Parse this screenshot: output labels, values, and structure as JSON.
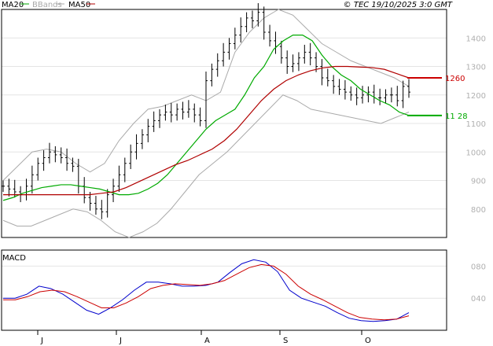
{
  "header": {
    "legend": [
      {
        "label": "MA20",
        "color": "#00aa00"
      },
      {
        "label": "BBands",
        "color": "#aaaaaa"
      },
      {
        "label": "MA50",
        "color": "#b00000"
      }
    ],
    "copyright": "© TEC 19/10/2025 3:0 GMT"
  },
  "panels": {
    "macd_label": "MACD"
  },
  "chart_data": [
    {
      "type": "line",
      "title": "",
      "x_labels": [
        "J",
        "J",
        "A",
        "S",
        "O"
      ],
      "ylim": [
        700,
        1500
      ],
      "grid": true,
      "y_ticks": [
        800,
        900,
        1000,
        1100,
        1200,
        1300,
        1400
      ],
      "y_tick_labels": [
        "800",
        "900",
        "1000",
        "1100",
        "1200",
        "1300",
        "1400"
      ],
      "markers": [
        {
          "name": "MA50",
          "value": 1260,
          "label": "1260",
          "color": "#cc0000"
        },
        {
          "name": "MA20",
          "value": 1128,
          "label": "11 28",
          "color": "#00aa00"
        }
      ],
      "price_close": [
        880,
        870,
        860,
        850,
        880,
        920,
        960,
        980,
        1000,
        990,
        980,
        960,
        950,
        880,
        840,
        820,
        800,
        790,
        850,
        880,
        920,
        960,
        1000,
        1030,
        1060,
        1090,
        1110,
        1130,
        1140,
        1130,
        1150,
        1140,
        1150,
        1130,
        1110,
        1250,
        1290,
        1320,
        1350,
        1380,
        1410,
        1440,
        1470,
        1460,
        1490,
        1420,
        1390,
        1370,
        1330,
        1300,
        1310,
        1330,
        1350,
        1330,
        1300,
        1260,
        1250,
        1230,
        1220,
        1210,
        1200,
        1190,
        1200,
        1210,
        1190,
        1190,
        1200,
        1200,
        1180,
        1230,
        1210
      ],
      "series": [
        {
          "name": "MA20",
          "color": "#00aa00",
          "values": [
            830,
            840,
            855,
            865,
            875,
            880,
            885,
            885,
            880,
            875,
            870,
            860,
            850,
            850,
            855,
            870,
            890,
            920,
            960,
            1000,
            1040,
            1080,
            1110,
            1130,
            1150,
            1200,
            1260,
            1300,
            1360,
            1390,
            1410,
            1410,
            1390,
            1340,
            1300,
            1270,
            1250,
            1220,
            1200,
            1180,
            1165,
            1140,
            1128
          ]
        },
        {
          "name": "MA50",
          "color": "#b00000",
          "values": [
            850,
            850,
            850,
            850,
            850,
            850,
            850,
            850,
            855,
            860,
            875,
            895,
            915,
            935,
            955,
            970,
            990,
            1010,
            1040,
            1080,
            1130,
            1180,
            1220,
            1250,
            1270,
            1285,
            1295,
            1300,
            1300,
            1298,
            1296,
            1290,
            1275,
            1260
          ]
        },
        {
          "name": "BBands upper",
          "color": "#aaaaaa",
          "values": [
            900,
            950,
            1000,
            1010,
            1000,
            960,
            930,
            960,
            1040,
            1100,
            1150,
            1160,
            1180,
            1200,
            1180,
            1210,
            1350,
            1420,
            1470,
            1500,
            1480,
            1430,
            1380,
            1350,
            1320,
            1300,
            1280,
            1260,
            1230
          ]
        },
        {
          "name": "BBands lower",
          "color": "#aaaaaa",
          "values": [
            760,
            740,
            740,
            760,
            780,
            800,
            790,
            760,
            720,
            700,
            720,
            750,
            800,
            860,
            920,
            960,
            1000,
            1050,
            1100,
            1150,
            1200,
            1180,
            1150,
            1140,
            1130,
            1120,
            1110,
            1100,
            1120,
            1140
          ]
        }
      ]
    },
    {
      "type": "line",
      "title": "MACD",
      "ylim": [
        0,
        100
      ],
      "grid": true,
      "y_ticks": [
        40,
        80
      ],
      "y_tick_labels": [
        "040",
        "080"
      ],
      "series": [
        {
          "name": "MACD",
          "color": "#0000cc",
          "values": [
            40,
            40,
            45,
            55,
            52,
            45,
            35,
            25,
            20,
            28,
            38,
            50,
            60,
            60,
            58,
            55,
            55,
            56,
            60,
            72,
            83,
            88,
            85,
            73,
            50,
            40,
            35,
            30,
            22,
            15,
            12,
            11,
            12,
            14,
            22
          ]
        },
        {
          "name": "Signal",
          "color": "#cc0000",
          "values": [
            38,
            38,
            42,
            48,
            50,
            48,
            42,
            35,
            28,
            28,
            34,
            42,
            52,
            56,
            58,
            57,
            56,
            58,
            62,
            70,
            78,
            82,
            80,
            70,
            55,
            45,
            38,
            30,
            22,
            16,
            14,
            13,
            14,
            18
          ]
        }
      ]
    }
  ]
}
